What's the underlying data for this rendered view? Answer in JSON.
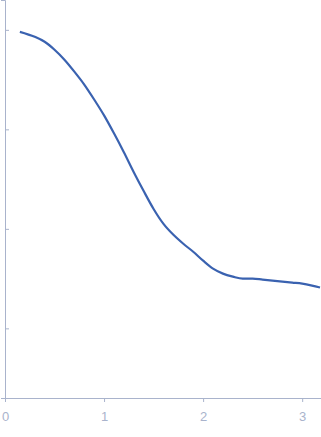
{
  "chart_data": {
    "type": "line",
    "x": [
      0.15,
      0.3,
      0.4,
      0.5,
      0.6,
      0.7,
      0.8,
      0.9,
      1.0,
      1.1,
      1.2,
      1.3,
      1.4,
      1.5,
      1.6,
      1.7,
      1.8,
      1.9,
      2.0,
      2.1,
      2.2,
      2.3,
      2.4,
      2.5,
      2.6,
      2.7,
      2.8,
      2.9,
      3.0,
      3.1,
      3.18
    ],
    "series": [
      {
        "color": "#3a62b0",
        "values": [
          3.98,
          3.93,
          3.88,
          3.8,
          3.7,
          3.58,
          3.45,
          3.3,
          3.14,
          2.96,
          2.77,
          2.57,
          2.38,
          2.2,
          2.05,
          1.94,
          1.85,
          1.77,
          1.68,
          1.6,
          1.55,
          1.52,
          1.5,
          1.5,
          1.49,
          1.48,
          1.47,
          1.46,
          1.45,
          1.43,
          1.41
        ]
      }
    ],
    "xlim": [
      0,
      3.19
    ],
    "xticks": [
      0,
      1,
      2,
      3
    ],
    "ylim": [
      0.3,
      4.3
    ],
    "yticks": [
      1,
      2,
      3,
      4
    ],
    "tick_labels": "x",
    "grid": false
  }
}
